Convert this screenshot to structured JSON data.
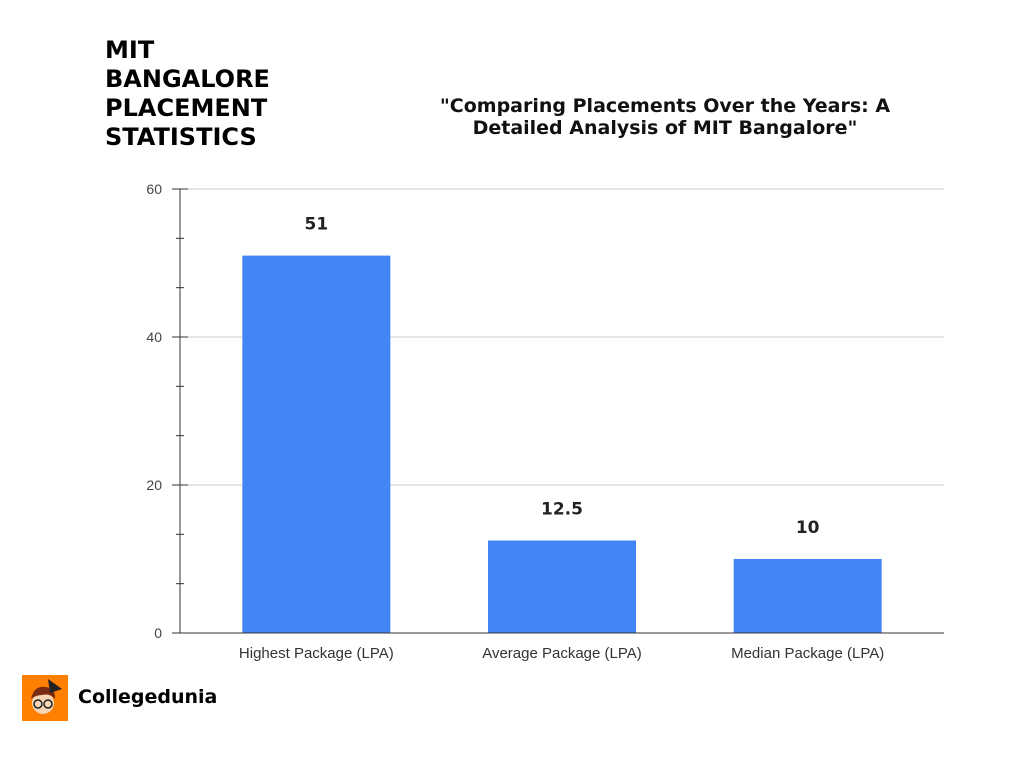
{
  "header": {
    "title": "MIT BANGALORE PLACEMENT STATISTICS",
    "subtitle": "\"Comparing Placements Over the Years: A Detailed Analysis of  MIT Bangalore\""
  },
  "brand": {
    "name": "Collegedunia",
    "logo_color": "#ff7f00"
  },
  "chart_data": {
    "type": "bar",
    "title": "\"Comparing Placements Over the Years: A Detailed Analysis of  MIT Bangalore\"",
    "categories": [
      "Highest Package (LPA)",
      "Average Package (LPA)",
      "Median Package (LPA)"
    ],
    "values": [
      51,
      12.5,
      10
    ],
    "data_labels": [
      "51",
      "12.5",
      "10"
    ],
    "ylim": [
      0,
      60
    ],
    "yticks": [
      0,
      20,
      40,
      60
    ],
    "xlabel": "",
    "ylabel": "",
    "grid": true,
    "color": "#4285f4"
  }
}
